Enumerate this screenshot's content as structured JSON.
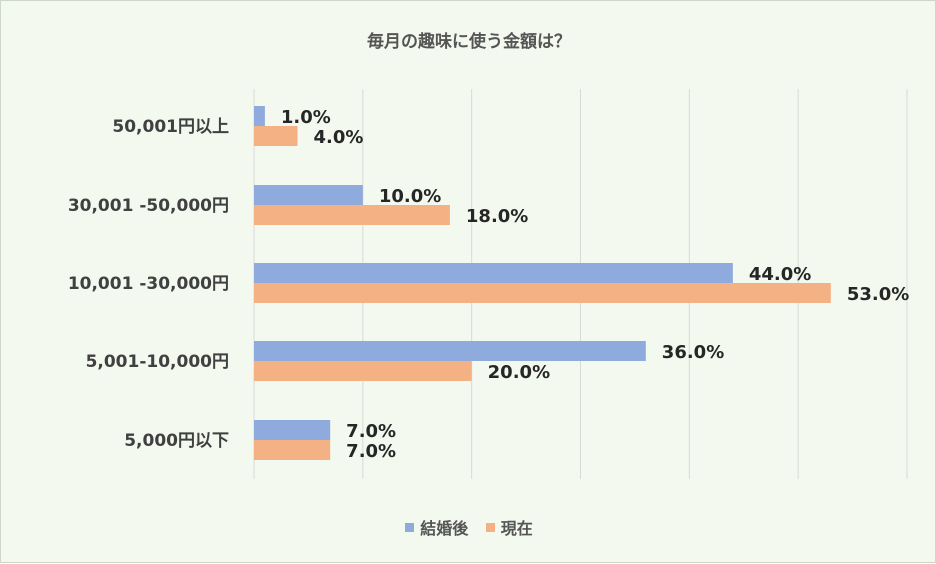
{
  "chart_data": {
    "type": "bar",
    "orientation": "horizontal",
    "title": "毎月の趣味に使う金額は？",
    "categories": [
      "50,001円以上",
      "30,001 -50,000円",
      "10,001 -30,000円",
      "5,001-10,000円",
      "5,000円以下"
    ],
    "series": [
      {
        "name": "結婚後",
        "color": "#8faadc",
        "values": [
          1.0,
          10.0,
          44.0,
          36.0,
          7.0
        ],
        "labels": [
          "1.0%",
          "10.0%",
          "44.0%",
          "36.0%",
          "7.0%"
        ]
      },
      {
        "name": "現在",
        "color": "#f4b183",
        "values": [
          4.0,
          18.0,
          53.0,
          20.0,
          7.0
        ],
        "labels": [
          "4.0%",
          "18.0%",
          "53.0%",
          "20.0%",
          "7.0%"
        ]
      }
    ],
    "xlim": [
      0,
      60
    ],
    "x_gridlines": [
      0,
      10,
      20,
      30,
      40,
      50,
      60
    ],
    "gridlines": "vertical",
    "legend_position": "bottom"
  }
}
